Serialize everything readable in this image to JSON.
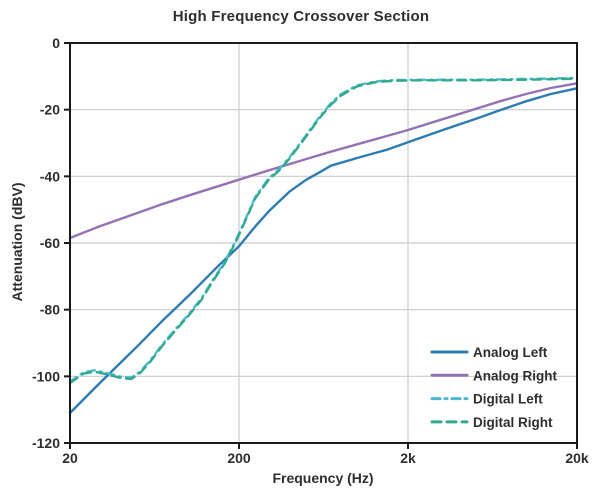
{
  "title": "High Frequency Crossover Section",
  "chart_data": {
    "type": "line",
    "title": "High Frequency Crossover Section",
    "xlabel": "Frequency (Hz)",
    "ylabel": "Attenuation (dBV)",
    "x_scale": "log",
    "xlim": [
      20,
      20000
    ],
    "ylim": [
      -120,
      0
    ],
    "grid": true,
    "legend_position": "lower right",
    "x_ticks": [
      {
        "value": 20,
        "label": "20"
      },
      {
        "value": 200,
        "label": "200"
      },
      {
        "value": 2000,
        "label": "2k"
      },
      {
        "value": 20000,
        "label": "20k"
      }
    ],
    "y_ticks": [
      {
        "value": 0,
        "label": "0"
      },
      {
        "value": -20,
        "label": "-20"
      },
      {
        "value": -40,
        "label": "-40"
      },
      {
        "value": -60,
        "label": "-60"
      },
      {
        "value": -80,
        "label": "-80"
      },
      {
        "value": -100,
        "label": "-100"
      },
      {
        "value": -120,
        "label": "-120"
      }
    ],
    "colors": {
      "grid": "#cccccc",
      "axis": "#1a1a1a",
      "text": "#2e2e2e"
    },
    "series": [
      {
        "name": "Analog Left",
        "color": "#2C7BB2",
        "style": "solid",
        "x": [
          20,
          30,
          50,
          70,
          100,
          150,
          200,
          250,
          300,
          400,
          500,
          600,
          700,
          1000,
          1500,
          2000,
          3000,
          5000,
          7000,
          10000,
          14000,
          20000
        ],
        "y": [
          -111,
          -102,
          -91,
          -83.5,
          -76,
          -67,
          -61,
          -55,
          -50.5,
          -44.5,
          -41,
          -38.8,
          -36.8,
          -34.5,
          -32,
          -29.8,
          -26.6,
          -22.8,
          -20.2,
          -17.5,
          -15.3,
          -13.6
        ]
      },
      {
        "name": "Analog Right",
        "color": "#9572B4",
        "style": "solid",
        "x": [
          20,
          30,
          50,
          70,
          100,
          150,
          200,
          300,
          400,
          500,
          700,
          1000,
          1500,
          2000,
          3000,
          5000,
          7000,
          10000,
          14000,
          20000
        ],
        "y": [
          -58.5,
          -55,
          -51,
          -48.4,
          -45.8,
          -43,
          -41,
          -38.2,
          -36.3,
          -34.8,
          -32.6,
          -30.4,
          -27.9,
          -26.1,
          -23.3,
          -19.8,
          -17.5,
          -15.3,
          -13.5,
          -12.1
        ]
      },
      {
        "name": "Digital Left",
        "color": "#4DB8D4",
        "style": "dashdot",
        "x": [
          20,
          24,
          28,
          33,
          40,
          46,
          52,
          60,
          70,
          85,
          100,
          120,
          140,
          165,
          190,
          215,
          250,
          300,
          350,
          400,
          500,
          600,
          700,
          800,
          1000,
          1300,
          1700,
          2500,
          5000,
          10000,
          20000
        ],
        "y": [
          -101.6,
          -98.8,
          -98.2,
          -99,
          -100.1,
          -100.4,
          -98.6,
          -95.1,
          -90.6,
          -85.6,
          -81.6,
          -76.6,
          -71.1,
          -65.6,
          -59.6,
          -53.6,
          -46.1,
          -40.6,
          -37.6,
          -34.1,
          -27.6,
          -22.1,
          -18.1,
          -15.4,
          -12.7,
          -11.5,
          -11.1,
          -11,
          -11,
          -10.8,
          -10.5
        ]
      },
      {
        "name": "Digital Right",
        "color": "#2FAA8C",
        "style": "dashed",
        "x": [
          20,
          24,
          28,
          33,
          40,
          46,
          52,
          60,
          70,
          85,
          100,
          120,
          140,
          165,
          190,
          215,
          250,
          300,
          350,
          400,
          500,
          600,
          700,
          800,
          1000,
          1300,
          1700,
          2500,
          5000,
          10000,
          20000
        ],
        "y": [
          -102,
          -99.2,
          -98.6,
          -99.4,
          -100.5,
          -100.8,
          -99,
          -95.5,
          -91,
          -86,
          -82,
          -77,
          -71.5,
          -66,
          -60,
          -54,
          -46.5,
          -41,
          -38,
          -34.5,
          -28,
          -22.5,
          -18.5,
          -15.8,
          -13,
          -11.7,
          -11.3,
          -11.2,
          -11.2,
          -11,
          -10.7
        ]
      }
    ]
  }
}
